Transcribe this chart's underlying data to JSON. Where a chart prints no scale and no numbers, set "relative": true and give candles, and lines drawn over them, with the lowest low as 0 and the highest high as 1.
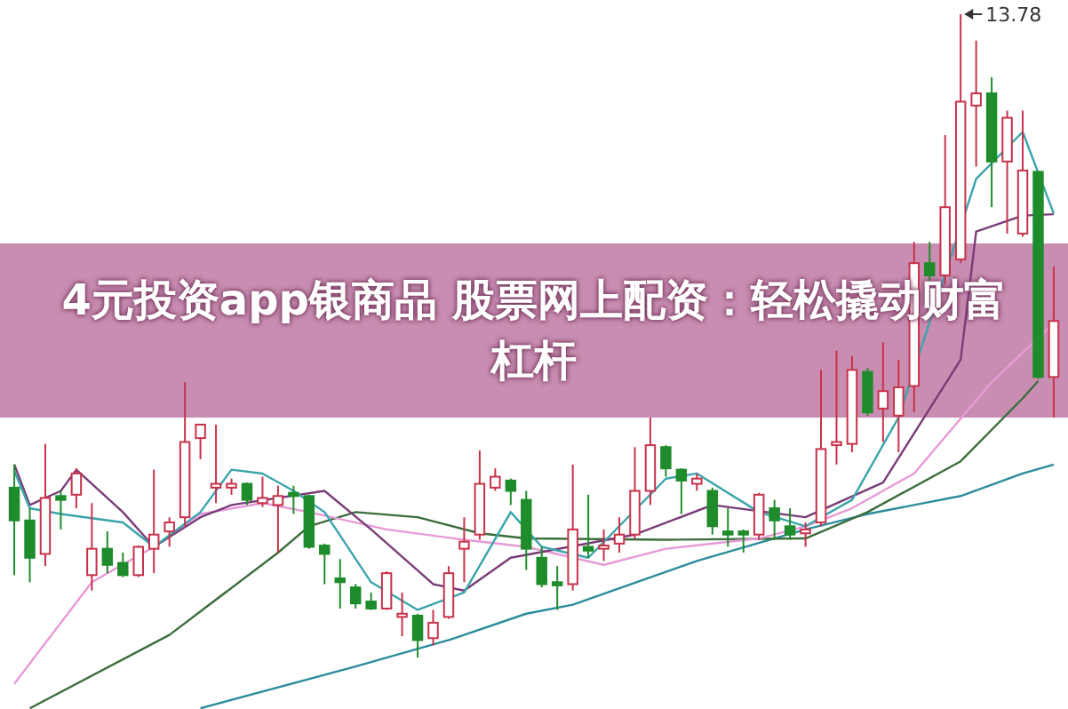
{
  "chart_data": {
    "type": "candlestick",
    "title": "4元投资app银商品 股票网上配资：轻松撬动财富杠杆",
    "relative": true,
    "categories": [
      null,
      null,
      null,
      null,
      null,
      null,
      null,
      null,
      null,
      null,
      null,
      null,
      null,
      null,
      null,
      null,
      null,
      null,
      null,
      null,
      null,
      null,
      null,
      null,
      null,
      null,
      null,
      null,
      null,
      null,
      null,
      null,
      null,
      null,
      null,
      null,
      null,
      null,
      null,
      null,
      null,
      null,
      null,
      null,
      null,
      null,
      null,
      null,
      null,
      null,
      null,
      null,
      null,
      null,
      null,
      null,
      null,
      null,
      null,
      null,
      null,
      null,
      null,
      null,
      null,
      null,
      null,
      null
    ],
    "ohlc": [
      [
        0.264,
        0.3,
        0.128,
        0.213
      ],
      [
        0.213,
        0.232,
        0.117,
        0.155
      ],
      [
        0.161,
        0.332,
        0.142,
        0.248
      ],
      [
        0.251,
        0.259,
        0.199,
        0.245
      ],
      [
        0.253,
        0.294,
        0.232,
        0.286
      ],
      [
        0.128,
        0.24,
        0.104,
        0.169
      ],
      [
        0.169,
        0.196,
        0.131,
        0.144
      ],
      [
        0.147,
        0.163,
        0.125,
        0.128
      ],
      [
        0.128,
        0.174,
        0.125,
        0.172
      ],
      [
        0.169,
        0.292,
        0.131,
        0.191
      ],
      [
        0.196,
        0.218,
        0.172,
        0.21
      ],
      [
        0.218,
        0.428,
        0.204,
        0.335
      ],
      [
        0.341,
        0.362,
        0.308,
        0.362
      ],
      [
        0.264,
        0.362,
        0.24,
        0.27
      ],
      [
        0.264,
        0.278,
        0.253,
        0.27
      ],
      [
        0.27,
        0.272,
        0.237,
        0.245
      ],
      [
        0.24,
        0.281,
        0.234,
        0.248
      ],
      [
        0.237,
        0.267,
        0.163,
        0.251
      ],
      [
        0.256,
        0.267,
        0.223,
        0.251
      ],
      [
        0.251,
        0.253,
        0.169,
        0.172
      ],
      [
        0.174,
        0.177,
        0.114,
        0.161
      ],
      [
        0.123,
        0.153,
        0.076,
        0.117
      ],
      [
        0.109,
        0.114,
        0.076,
        0.084
      ],
      [
        0.087,
        0.101,
        0.074,
        0.076
      ],
      [
        0.076,
        0.134,
        0.074,
        0.131
      ],
      [
        0.063,
        0.101,
        0.033,
        0.068
      ],
      [
        0.065,
        0.068,
        0,
        0.027
      ],
      [
        0.03,
        0.074,
        0.019,
        0.054
      ],
      [
        0.063,
        0.142,
        0.06,
        0.131
      ],
      [
        0.169,
        0.218,
        0.117,
        0.18
      ],
      [
        0.191,
        0.322,
        0.183,
        0.27
      ],
      [
        0.264,
        0.294,
        0.259,
        0.281
      ],
      [
        0.275,
        0.278,
        0.237,
        0.259
      ],
      [
        0.245,
        0.259,
        0.136,
        0.169
      ],
      [
        0.155,
        0.172,
        0.109,
        0.114
      ],
      [
        0.117,
        0.142,
        0.074,
        0.112
      ],
      [
        0.114,
        0.3,
        0.104,
        0.199
      ],
      [
        0.172,
        0.253,
        0.155,
        0.166
      ],
      [
        0.169,
        0.199,
        0.15,
        0.174
      ],
      [
        0.177,
        0.218,
        0.163,
        0.191
      ],
      [
        0.191,
        0.327,
        0.185,
        0.259
      ],
      [
        0.259,
        0.373,
        0.237,
        0.33
      ],
      [
        0.327,
        0.33,
        0.281,
        0.294
      ],
      [
        0.292,
        0.294,
        0.223,
        0.275
      ],
      [
        0.27,
        0.286,
        0.259,
        0.278
      ],
      [
        0.259,
        0.264,
        0.191,
        0.204
      ],
      [
        0.196,
        0.232,
        0.172,
        0.191
      ],
      [
        0.196,
        0.199,
        0.163,
        0.191
      ],
      [
        0.191,
        0.256,
        0.183,
        0.253
      ],
      [
        0.232,
        0.245,
        0.183,
        0.213
      ],
      [
        0.204,
        0.232,
        0.183,
        0.191
      ],
      [
        0.193,
        0.21,
        0.172,
        0.199
      ],
      [
        0.21,
        0.447,
        0.204,
        0.324
      ],
      [
        0.33,
        0.477,
        0.3,
        0.335
      ],
      [
        0.332,
        0.469,
        0.319,
        0.447
      ],
      [
        0.444,
        0.45,
        0.376,
        0.381
      ],
      [
        0.387,
        0.49,
        0.335,
        0.414
      ],
      [
        0.376,
        0.463,
        0.319,
        0.42
      ],
      [
        0.422,
        0.646,
        0.381,
        0.613
      ],
      [
        0.613,
        0.646,
        0.58,
        0.594
      ],
      [
        0.594,
        0.812,
        0.58,
        0.7
      ],
      [
        0.619,
        1,
        0.613,
        0.864
      ],
      [
        0.858,
        0.959,
        0.763,
        0.877
      ],
      [
        0.877,
        0.902,
        0.7,
        0.771
      ],
      [
        0.771,
        0.85,
        0.659,
        0.839
      ],
      [
        0.659,
        0.85,
        0.654,
        0.757
      ],
      [
        0.755,
        0.755,
        0.433,
        0.436
      ],
      [
        0.436,
        0.608,
        0.373,
        0.523
      ]
    ],
    "series": [
      {
        "type": "line",
        "color": "#2b8c9c",
        "values": [
          null,
          null,
          null,
          null,
          null,
          null,
          null,
          null,
          null,
          null,
          null,
          null,
          -0.079,
          null,
          null,
          null,
          null,
          null,
          null,
          null,
          null,
          null,
          -0.014,
          null,
          null,
          null,
          null,
          null,
          0.027,
          null,
          null,
          null,
          null,
          0.068,
          null,
          null,
          0.082,
          null,
          null,
          null,
          null,
          null,
          null,
          null,
          0.15,
          null,
          null,
          null,
          null,
          null,
          null,
          0.199,
          null,
          null,
          null,
          0.223,
          null,
          null,
          null,
          null,
          null,
          0.251,
          null,
          null,
          null,
          0.286,
          null,
          0.3
        ]
      },
      {
        "type": "line",
        "color": "#3c6e3c",
        "values": [
          null,
          -0.079,
          null,
          null,
          null,
          null,
          null,
          null,
          null,
          null,
          0.035,
          null,
          null,
          null,
          null,
          null,
          null,
          0.163,
          null,
          0.204,
          null,
          null,
          0.226,
          null,
          null,
          null,
          0.218,
          null,
          null,
          null,
          0.193,
          null,
          null,
          0.185,
          null,
          null,
          null,
          null,
          null,
          null,
          null,
          null,
          0.183,
          null,
          null,
          null,
          null,
          null,
          null,
          null,
          null,
          0.185,
          null,
          null,
          null,
          0.226,
          null,
          null,
          null,
          null,
          null,
          0.305,
          null,
          null,
          null,
          0.403,
          0.43,
          null
        ]
      },
      {
        "type": "line",
        "color": "#e89ad8",
        "values": [
          -0.041,
          null,
          null,
          null,
          null,
          0.117,
          null,
          null,
          null,
          0.172,
          null,
          null,
          0.223,
          null,
          null,
          null,
          0.24,
          null,
          null,
          0.226,
          null,
          null,
          null,
          null,
          0.199,
          null,
          null,
          null,
          null,
          0.183,
          null,
          null,
          null,
          0.172,
          null,
          null,
          null,
          null,
          0.144,
          null,
          null,
          null,
          0.169,
          null,
          null,
          null,
          null,
          null,
          0.185,
          null,
          null,
          0.204,
          null,
          null,
          0.232,
          null,
          null,
          null,
          0.286,
          null,
          null,
          null,
          null,
          0.428,
          null,
          null,
          null,
          0.52
        ]
      },
      {
        "type": "line",
        "color": "#7a3c78",
        "values": [
          0.3,
          0.237,
          null,
          0.259,
          0.292,
          null,
          null,
          0.226,
          null,
          0.172,
          null,
          null,
          0.218,
          null,
          0.237,
          null,
          null,
          null,
          null,
          null,
          0.259,
          null,
          null,
          0.199,
          null,
          null,
          null,
          0.114,
          null,
          0.104,
          null,
          null,
          0.155,
          null,
          null,
          null,
          null,
          null,
          null,
          null,
          0.191,
          null,
          null,
          null,
          null,
          0.237,
          null,
          null,
          null,
          null,
          null,
          0.218,
          null,
          null,
          null,
          null,
          0.272,
          null,
          null,
          null,
          null,
          0.463,
          0.662,
          null,
          null,
          0.687,
          null,
          0.689
        ]
      },
      {
        "type": "line",
        "color": "#3aa4ac",
        "values": [
          0.29,
          0.232,
          null,
          0.223,
          null,
          null,
          null,
          0.21,
          null,
          0.172,
          null,
          null,
          0.226,
          null,
          0.292,
          null,
          0.286,
          null,
          0.259,
          null,
          0.226,
          null,
          null,
          0.117,
          null,
          null,
          0.074,
          null,
          null,
          0.101,
          null,
          null,
          0.226,
          null,
          0.172,
          null,
          null,
          0.155,
          null,
          null,
          null,
          null,
          0.278,
          null,
          0.286,
          null,
          null,
          null,
          0.226,
          null,
          null,
          0.204,
          null,
          null,
          0.245,
          null,
          null,
          0.373,
          null,
          null,
          null,
          null,
          0.744,
          null,
          null,
          0.817,
          null,
          0.69
        ]
      }
    ],
    "annotations": [
      "13.78"
    ]
  }
}
